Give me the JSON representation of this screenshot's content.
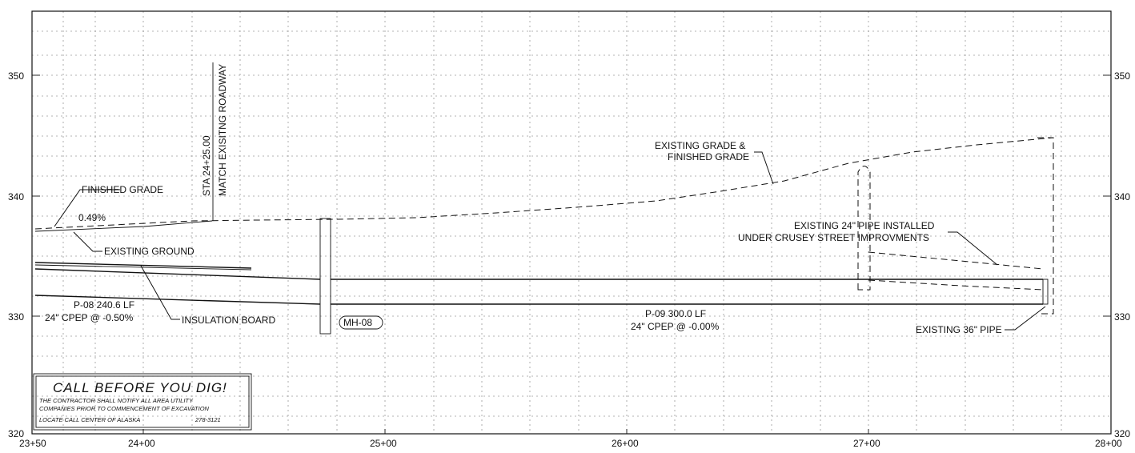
{
  "axes": {
    "elevation_ticks_left": [
      "350",
      "340",
      "330",
      "320"
    ],
    "elevation_ticks_right": [
      "350",
      "340",
      "330",
      "320"
    ],
    "station_ticks": [
      "23+50",
      "24+00",
      "25+00",
      "26+00",
      "27+00",
      "28+00"
    ]
  },
  "labels": {
    "finished_grade": "FINISHED GRADE",
    "slope": "0.49%",
    "existing_ground": "EXISTING GROUND",
    "insulation_board": "INSULATION BOARD",
    "p08_line1": "P-08 240.6 LF",
    "p08_line2": "24\" CPEP @ -0.50%",
    "manhole": "MH-08",
    "p09_line1": "P-09 300.0 LF",
    "p09_line2": "24\" CPEP @ -0.00%",
    "sta_line1": "STA 24+25.00",
    "sta_line2": "MATCH EXISITNG ROADWAY",
    "existing_finished_line1": "EXISTING GRADE &",
    "existing_finished_line2": "FINISHED GRADE",
    "existing24_line1": "EXISTING 24\" PIPE INSTALLED",
    "existing24_line2": "UNDER CRUSEY STREET IMPROVMENTS",
    "existing36": "EXISTING 36\" PIPE"
  },
  "notice_box": {
    "title": "CALL BEFORE YOU DIG!",
    "line1": "THE CONTRACTOR SHALL NOTIFY ALL AREA UTILITY",
    "line2": "COMPANIES PRIOR TO COMMENCEMENT OF EXCAVATION",
    "line3_left": "LOCATE CALL CENTER OF ALASKA",
    "line3_right": "278-3121"
  }
}
